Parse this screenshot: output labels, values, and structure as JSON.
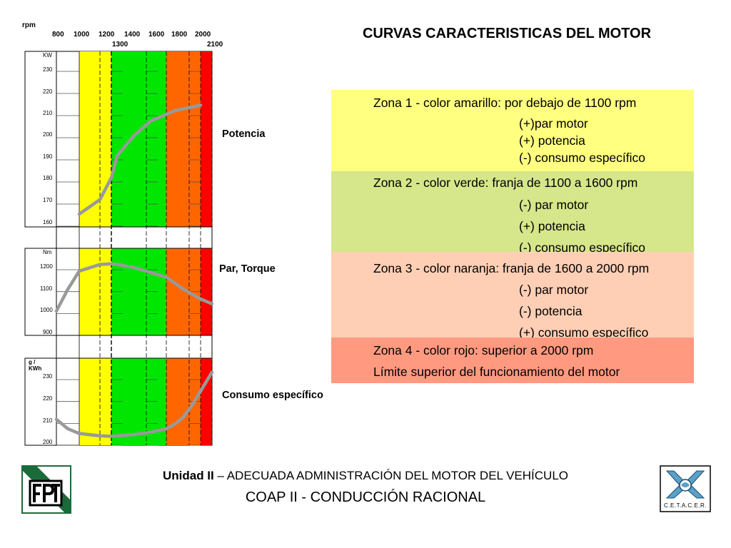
{
  "slide_title": "CURVAS CARACTERISTICAS DEL MOTOR",
  "rpm_axis": {
    "label": "rpm",
    "ticks_top": [
      "800",
      "1000",
      "1200",
      "1400",
      "1600",
      "1800",
      "2000"
    ],
    "ticks_bottom": [
      "1300",
      "2100"
    ]
  },
  "zones": [
    {
      "color": "#ffff80",
      "lines": [
        "Zona 1 - color amarillo: por debajo de 1100 rpm",
        "(+)par motor",
        "(+) potencia",
        "(-) consumo específico"
      ]
    },
    {
      "color": "#d6e68a",
      "lines": [
        "Zona 2 - color verde: franja de 1100 a 1600 rpm",
        "(-) par motor",
        "(+) potencia",
        "(-) consumo específico"
      ]
    },
    {
      "color": "#ffcfb5",
      "lines": [
        "Zona 3 - color naranja: franja de 1600 a 2000 rpm",
        "(-) par motor",
        "(-) potencia",
        "(+) consumo específico"
      ]
    },
    {
      "color": "#ff9a80",
      "lines": [
        "Zona 4 - color rojo: superior a 2000 rpm",
        "Límite superior del funcionamiento del motor"
      ]
    }
  ],
  "band_colors": {
    "yellow": "#ffff00",
    "green": "#00e600",
    "orange": "#ff6600",
    "red": "#ff0000"
  },
  "curve_color": "#999999",
  "chart_data": [
    {
      "type": "line",
      "label": "Potencia",
      "unit": "KW",
      "y_ticks": [
        "230",
        "220",
        "210",
        "200",
        "190",
        "180",
        "170",
        "160"
      ],
      "ylim": [
        160,
        230
      ],
      "x": [
        1000,
        1100,
        1200,
        1300,
        1400,
        1500,
        1600,
        1700,
        1800,
        1900,
        2000
      ],
      "values": [
        160,
        168,
        180,
        192,
        203,
        211,
        215,
        217,
        218,
        219,
        220
      ]
    },
    {
      "type": "line",
      "label": "Par, Torque",
      "unit": "Nm",
      "y_ticks": [
        "1200",
        "1100",
        "1000",
        "900"
      ],
      "ylim": [
        900,
        1200
      ],
      "x": [
        800,
        900,
        1000,
        1100,
        1200,
        1300,
        1400,
        1500,
        1600,
        1700,
        1800,
        1900,
        2000,
        2100
      ],
      "values": [
        1000,
        1090,
        1165,
        1192,
        1195,
        1193,
        1180,
        1160,
        1140,
        1115,
        1090,
        1070,
        1050,
        1030
      ]
    },
    {
      "type": "line",
      "label": "Consumo específico",
      "unit": "g / KWh",
      "y_ticks": [
        "230",
        "220",
        "210",
        "200"
      ],
      "ylim": [
        200,
        230
      ],
      "x": [
        800,
        900,
        1000,
        1100,
        1200,
        1300,
        1400,
        1500,
        1600,
        1700,
        1800,
        1900,
        2000,
        2100
      ],
      "values": [
        211,
        207,
        205,
        204,
        203.8,
        204,
        204.5,
        205.5,
        207,
        209,
        212,
        217,
        223,
        231
      ]
    }
  ],
  "footer": {
    "line1_bold": "Unidad II",
    "line1_rest": " – ADECUADA ADMINISTRACIÓN DEL MOTOR DEL VEHÍCULO",
    "line2": "COAP II - CONDUCCIÓN RACIONAL"
  },
  "logos": {
    "left_icon": "fpt-logo-icon",
    "right_text": "C.E.T.A.C.E.R."
  }
}
